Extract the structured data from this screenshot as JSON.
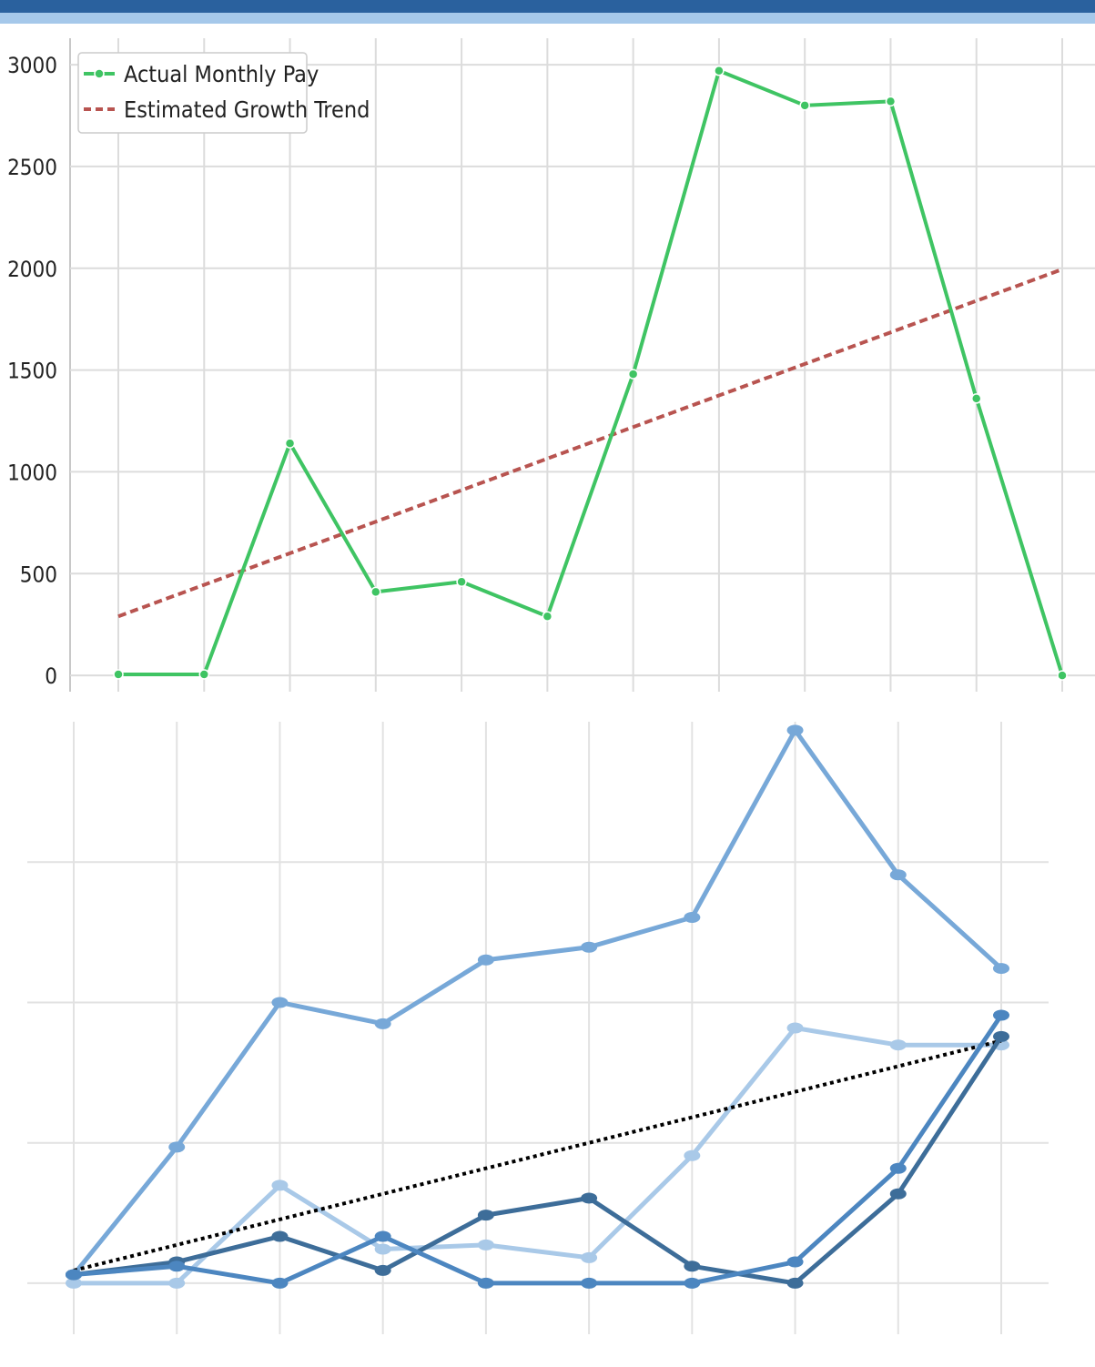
{
  "colors": {
    "header_dark": "#2a619e",
    "header_light": "#a5c8ea",
    "actual": "#3fc463",
    "trend": "#b85450",
    "grid": "#dcdcdc",
    "trend_dotted": "#000000",
    "series_blues": [
      "#77a8d8",
      "#a9c9e8",
      "#3d6d99",
      "#4c86c0"
    ]
  },
  "chart_data": [
    {
      "type": "line",
      "title": "",
      "xlabel": "",
      "ylabel": "",
      "x": [
        0,
        1,
        2,
        3,
        4,
        5,
        6,
        7,
        8,
        9,
        10,
        11
      ],
      "ylim": [
        -80,
        3130
      ],
      "yticks": [
        0,
        500,
        1000,
        1500,
        2000,
        2500,
        3000
      ],
      "ytick_labels": [
        "0",
        "500",
        "1000",
        "1500",
        "2000",
        "2500",
        "3000"
      ],
      "grid": true,
      "legend": {
        "placement": "top-left"
      },
      "series": [
        {
          "name": "Actual Monthly Pay",
          "style": "solid-markers",
          "values": [
            5,
            5,
            1140,
            410,
            460,
            290,
            1480,
            2970,
            2800,
            2820,
            1360,
            0
          ]
        },
        {
          "name": "Estimated Growth Trend",
          "style": "dashed",
          "values": [
            290,
            445,
            600,
            755,
            910,
            1065,
            1220,
            1375,
            1530,
            1685,
            1840,
            1995
          ]
        }
      ]
    },
    {
      "type": "line",
      "title": "",
      "xlabel": "",
      "ylabel": "",
      "x": [
        0,
        1,
        2,
        3,
        4,
        5,
        6,
        7,
        8,
        9
      ],
      "ylim": [
        -6,
        66
      ],
      "grid": true,
      "series": [
        {
          "style": "solid-markers",
          "values": [
            1,
            16,
            33,
            30.5,
            38,
            39.5,
            43,
            65,
            48,
            37
          ]
        },
        {
          "style": "solid-markers",
          "values": [
            0,
            0,
            11.5,
            4,
            4.5,
            3,
            15,
            30,
            28,
            28
          ]
        },
        {
          "style": "solid-markers",
          "values": [
            1,
            2.5,
            5.5,
            1.5,
            8,
            10,
            2,
            0,
            10.5,
            29
          ]
        },
        {
          "style": "solid-markers",
          "values": [
            1,
            2,
            0,
            5.5,
            0,
            0,
            0,
            2.5,
            13.5,
            31.5
          ]
        },
        {
          "style": "dotted",
          "values": [
            1.5,
            4.5,
            7.5,
            10.5,
            13.5,
            16.5,
            19.5,
            22.5,
            25.5,
            28.5
          ]
        }
      ]
    }
  ]
}
